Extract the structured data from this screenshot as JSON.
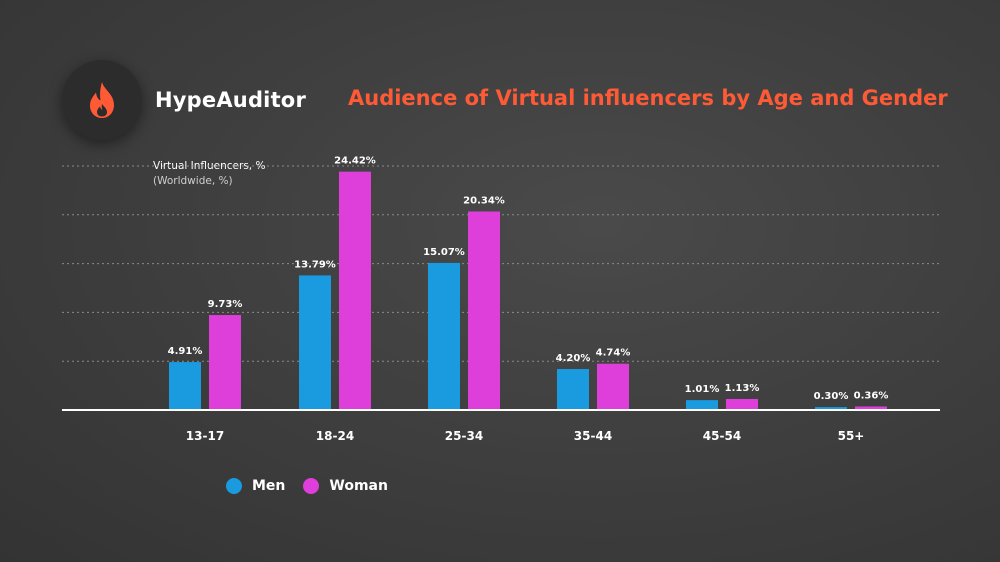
{
  "brand": {
    "name": "HypeAuditor",
    "icon": "flame-icon",
    "icon_color": "#ff5a36"
  },
  "title": "Audience of Virtual influencers by Age and Gender",
  "colors": {
    "men": "#1a9be0",
    "woman": "#de3ed9",
    "title": "#ff5a36"
  },
  "legend": [
    {
      "label": "Men",
      "color": "#1a9be0"
    },
    {
      "label": "Woman",
      "color": "#de3ed9"
    }
  ],
  "chart_data": {
    "type": "bar",
    "ylabel": "Virtual Influencers, %",
    "ylabel_sub": "(Worldwide, %)",
    "categories": [
      "13-17",
      "18-24",
      "25-34",
      "35-44",
      "45-54",
      "55+"
    ],
    "series": [
      {
        "name": "Men",
        "values": [
          4.91,
          13.79,
          15.07,
          4.2,
          1.01,
          0.3
        ],
        "labels": [
          "4.91%",
          "13.79%",
          "15.07%",
          "4.20%",
          "1.01%",
          "0.30%"
        ]
      },
      {
        "name": "Woman",
        "values": [
          9.73,
          24.42,
          20.34,
          4.74,
          1.13,
          0.36
        ],
        "labels": [
          "9.73%",
          "24.42%",
          "20.34%",
          "4.74%",
          "1.13%",
          "0.36%"
        ]
      }
    ],
    "ylim": [
      0,
      25
    ],
    "grid": true,
    "legend_position": "bottom-left"
  }
}
